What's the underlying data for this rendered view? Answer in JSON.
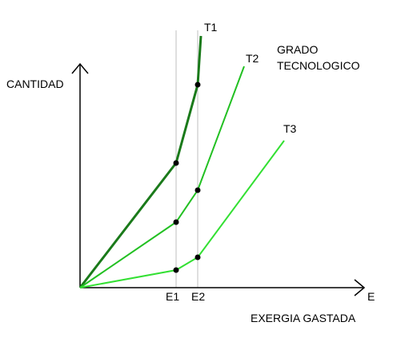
{
  "ylabel": "CANTIDAD",
  "xlabel_short": "E",
  "xlabel": "EXERGIA GASTADA",
  "legend_title": [
    "GRADO",
    "TECNOLOGICO"
  ],
  "xticks": [
    "E1",
    "E2"
  ],
  "colors": {
    "axis": "#000000",
    "guide": "#bfbfbf",
    "T1": "#1a7a1a",
    "T2": "#22c022",
    "T3": "#33e033",
    "marker": "#000000"
  },
  "curves": [
    {
      "name": "T1",
      "color_key": "T1"
    },
    {
      "name": "T2",
      "color_key": "T2"
    },
    {
      "name": "T3",
      "color_key": "T3"
    }
  ]
}
